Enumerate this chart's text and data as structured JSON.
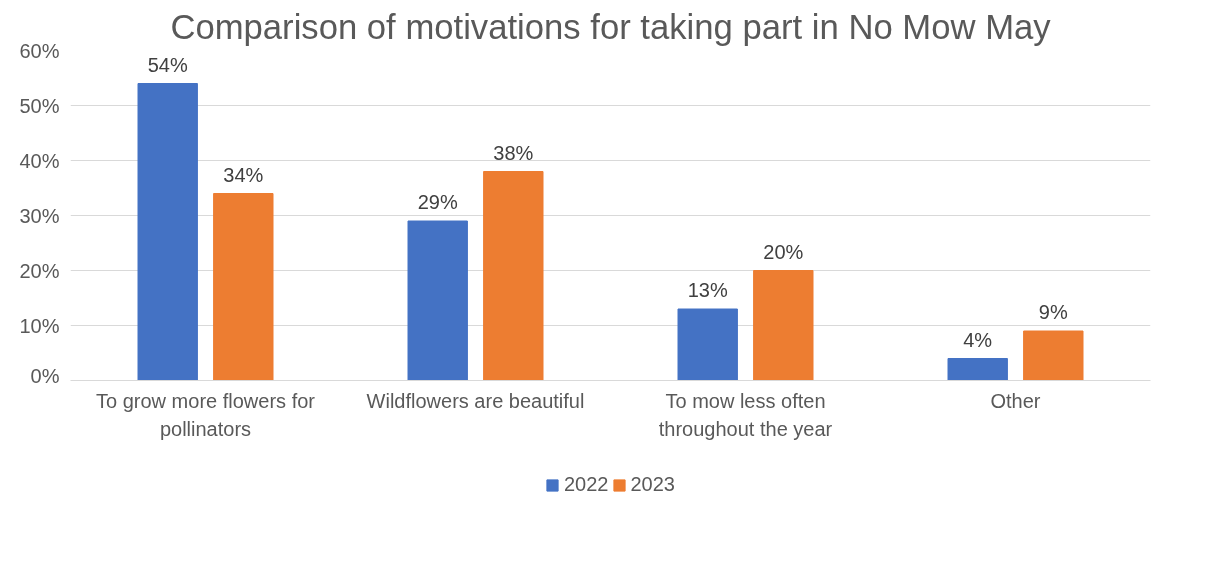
{
  "chart_data": {
    "type": "bar",
    "title": "Comparison of motivations for taking part in No Mow May",
    "categories": [
      "To grow more flowers for pollinators",
      "Wildflowers are beautiful",
      "To mow less often throughout the year",
      "Other"
    ],
    "series": [
      {
        "name": "2022",
        "color": "#4472c4",
        "values": [
          54,
          29,
          13,
          4
        ],
        "value_labels": [
          "54%",
          "29%",
          "13%",
          "4%"
        ]
      },
      {
        "name": "2023",
        "color": "#ed7d31",
        "values": [
          34,
          38,
          20,
          9
        ],
        "value_labels": [
          "34%",
          "38%",
          "20%",
          "9%"
        ]
      }
    ],
    "ylim": [
      0,
      60
    ],
    "yticks": [
      {
        "value": 0,
        "label": "0%"
      },
      {
        "value": 10,
        "label": "10%"
      },
      {
        "value": 20,
        "label": "20%"
      },
      {
        "value": 30,
        "label": "30%"
      },
      {
        "value": 40,
        "label": "40%"
      },
      {
        "value": 50,
        "label": "50%"
      },
      {
        "value": 60,
        "label": "60%"
      }
    ],
    "grid": "y",
    "legend": "bottom"
  }
}
